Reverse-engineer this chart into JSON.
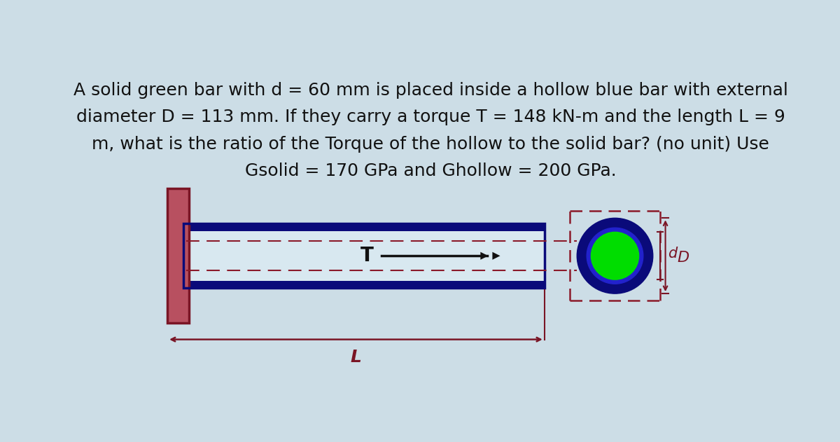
{
  "bg_color": "#ccdde6",
  "title_lines": [
    "A solid green bar with d = 60 mm is placed inside a hollow blue bar with external",
    "diameter D = 113 mm. If they carry a torque T = 148 kN-m and the length L = 9",
    "m, what is the ratio of the Torque of the hollow to the solid bar? (no unit) Use",
    "Gsolid = 170 GPa and Ghollow = 200 GPa."
  ],
  "title_fontsize": 18.0,
  "title_color": "#111111",
  "wall_color": "#7a1525",
  "wall_fill": "#b85060",
  "bar_blue_outer": "#0a0a7a",
  "bar_blue_inner": "#d8e8f0",
  "dashed_line_color": "#8B1A2A",
  "green_fill": "#00dd00",
  "blue_ring_outer": "#0a0a7a",
  "blue_ring_inner": "#2222cc",
  "arrow_color": "#111111",
  "dim_color": "#7a1525",
  "label_T": "T",
  "label_L": "L",
  "label_d": "d",
  "label_D": "D"
}
